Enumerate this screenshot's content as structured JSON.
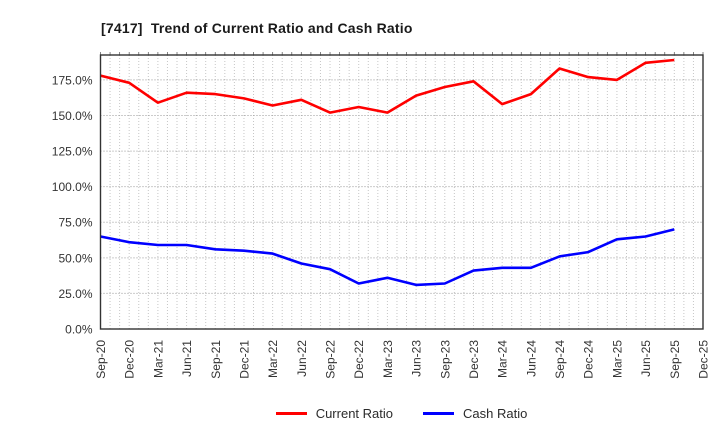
{
  "chart_data": {
    "type": "line",
    "title": "[7417]  Trend of Current Ratio and Cash Ratio",
    "categories": [
      "Sep-20",
      "Dec-20",
      "Mar-21",
      "Jun-21",
      "Sep-21",
      "Dec-21",
      "Mar-22",
      "Jun-22",
      "Sep-22",
      "Dec-22",
      "Mar-23",
      "Jun-23",
      "Sep-23",
      "Dec-23",
      "Mar-24",
      "Jun-24",
      "Sep-24",
      "Dec-24",
      "Mar-25",
      "Jun-25",
      "Sep-25",
      "Dec-25"
    ],
    "series": [
      {
        "name": "Current Ratio",
        "color": "#ff0000",
        "values": [
          178,
          173,
          159,
          166,
          165,
          162,
          157,
          161,
          152,
          156,
          152,
          164,
          170,
          174,
          158,
          165,
          183,
          177,
          175,
          187,
          189,
          null
        ]
      },
      {
        "name": "Cash Ratio",
        "color": "#0000ff",
        "values": [
          65,
          61,
          59,
          59,
          56,
          55,
          53,
          46,
          42,
          32,
          36,
          31,
          32,
          41,
          43,
          43,
          51,
          54,
          63,
          65,
          70,
          null
        ]
      }
    ],
    "y_ticks": [
      "0.0%",
      "25.0%",
      "50.0%",
      "75.0%",
      "100.0%",
      "125.0%",
      "150.0%",
      "175.0%"
    ],
    "ylim": [
      0,
      192.5
    ],
    "xlabel": "",
    "ylabel": "",
    "grid": true,
    "legend_position": "bottom-center",
    "x_minor_gridlines": "monthly"
  },
  "colors": {
    "current_ratio": "#ff0000",
    "cash_ratio": "#0000ff",
    "axis_frame": "#333333",
    "grid_major": "#999999",
    "grid_minor": "#c6c6c6",
    "tick_text": "#333333",
    "background": "#ffffff"
  }
}
